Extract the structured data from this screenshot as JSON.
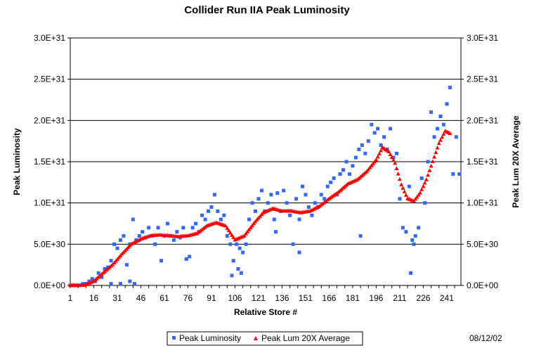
{
  "chart_data": {
    "type": "scatter",
    "title": "Collider Run IIA Peak Luminosity",
    "xlabel": "Relative Store #",
    "ylabel": "Peak Luminosity",
    "y2label": "Peak Lum 20X Average",
    "xlim": [
      1,
      250
    ],
    "ylim": [
      0,
      3e+31
    ],
    "x_ticks": [
      "1",
      "16",
      "31",
      "46",
      "61",
      "76",
      "91",
      "106",
      "121",
      "136",
      "151",
      "166",
      "181",
      "196",
      "211",
      "226",
      "241"
    ],
    "y_ticks": [
      "0.0E+00",
      "5.0E+30",
      "1.0E+31",
      "1.5E+31",
      "2.0E+31",
      "2.5E+31",
      "3.0E+31"
    ],
    "grid": "horizontal",
    "legend_position": "bottom",
    "series": [
      {
        "name": "Peak Luminosity",
        "color": "#3366ff",
        "marker": "square",
        "x": [
          1,
          3,
          5,
          7,
          9,
          11,
          13,
          15,
          17,
          19,
          21,
          23,
          25,
          27,
          29,
          31,
          33,
          35,
          37,
          39,
          41,
          43,
          45,
          47,
          49,
          51,
          53,
          55,
          57,
          59,
          61,
          63,
          65,
          67,
          69,
          71,
          73,
          75,
          77,
          79,
          81,
          83,
          85,
          87,
          89,
          91,
          93,
          95,
          97,
          99,
          101,
          103,
          105,
          107,
          109,
          111,
          113,
          115,
          117,
          119,
          121,
          123,
          125,
          127,
          129,
          131,
          133,
          135,
          137,
          139,
          141,
          143,
          145,
          147,
          149,
          151,
          153,
          155,
          157,
          159,
          161,
          163,
          165,
          167,
          169,
          171,
          173,
          175,
          177,
          179,
          181,
          183,
          185,
          187,
          189,
          191,
          193,
          195,
          197,
          199,
          201,
          203,
          205,
          207,
          209,
          211,
          213,
          215,
          217,
          219,
          221,
          223,
          225,
          227,
          229,
          231,
          233,
          235,
          237,
          239,
          241,
          243,
          245,
          247,
          249,
          27,
          33,
          39,
          42,
          104,
          108,
          110,
          132,
          147,
          186,
          218,
          220
        ],
        "y": [
          0,
          0,
          0,
          0,
          2e+29,
          2e+29,
          5e+29,
          8e+29,
          5e+29,
          1.5e+30,
          1e+30,
          2e+30,
          2.2e+30,
          3e+30,
          5e+30,
          4.5e+30,
          5.5e+30,
          6e+30,
          2.5e+30,
          5e+30,
          8e+30,
          5.5e+30,
          6e+30,
          6.5e+30,
          5.8e+30,
          7e+30,
          6e+30,
          5e+30,
          7e+30,
          3e+30,
          6e+30,
          7.5e+30,
          6e+30,
          5.5e+30,
          6.5e+30,
          5.8e+30,
          7e+30,
          3.2e+30,
          3.5e+30,
          7e+30,
          7.5e+30,
          6.5e+30,
          8.5e+30,
          8e+30,
          9e+30,
          9.5e+30,
          1.1e+31,
          9e+30,
          8e+30,
          8.5e+30,
          6e+30,
          5e+30,
          3e+30,
          5e+30,
          4.5e+30,
          4e+30,
          5e+30,
          8e+30,
          1e+31,
          9e+30,
          1.05e+31,
          1.15e+31,
          9e+30,
          1e+31,
          1.1e+31,
          8e+30,
          1.12e+31,
          9e+30,
          1.15e+31,
          1e+31,
          8.5e+30,
          5e+30,
          1.05e+31,
          8e+30,
          1.2e+31,
          1.1e+31,
          9.5e+30,
          8.5e+30,
          1e+31,
          9.5e+30,
          1.1e+31,
          1.05e+31,
          1.2e+31,
          1.25e+31,
          1.3e+31,
          1.1e+31,
          1.35e+31,
          1.4e+31,
          1.5e+31,
          1.35e+31,
          1.45e+31,
          1.55e+31,
          1.65e+31,
          1.7e+31,
          1.6e+31,
          1.75e+31,
          1.95e+31,
          1.85e+31,
          1.9e+31,
          1.7e+31,
          1.8e+31,
          1.65e+31,
          1.9e+31,
          1.55e+31,
          1.6e+31,
          1.05e+31,
          7e+30,
          6.5e+30,
          1.2e+31,
          5.5e+30,
          6e+30,
          7e+30,
          1.3e+31,
          1e+31,
          1.5e+31,
          2.1e+31,
          1.8e+31,
          1.9e+31,
          2.05e+31,
          1.95e+31,
          2.2e+31,
          2.4e+31,
          1.35e+31,
          1.8e+31,
          1.35e+31,
          2e+29,
          2e+29,
          5e+29,
          2e+29,
          1.2e+30,
          2e+30,
          1.5e+30,
          6.5e+30,
          4e+30,
          6e+30,
          1.5e+30,
          5e+30
        ]
      },
      {
        "name": "Peak Lum 20X Average",
        "color": "#ff0000",
        "marker": "triangle",
        "x": [
          1,
          10,
          16,
          22,
          28,
          34,
          40,
          46,
          52,
          58,
          64,
          70,
          76,
          82,
          88,
          94,
          100,
          106,
          112,
          118,
          124,
          130,
          136,
          142,
          148,
          154,
          160,
          166,
          172,
          178,
          184,
          190,
          196,
          200,
          204,
          208,
          212,
          216,
          220,
          224,
          228,
          232,
          236,
          240,
          243
        ],
        "y": [
          0,
          0,
          5e+29,
          1.5e+30,
          2.5e+30,
          3.8e+30,
          5e+30,
          5.6e+30,
          6e+30,
          6.1e+30,
          6e+30,
          5.9e+30,
          6e+30,
          6.3e+30,
          7.2e+30,
          7.6e+30,
          7.2e+30,
          5.5e+30,
          6e+30,
          7.5e+30,
          8.8e+30,
          9.3e+30,
          9e+30,
          9e+30,
          8.8e+30,
          9e+30,
          9.6e+30,
          1.05e+31,
          1.13e+31,
          1.23e+31,
          1.28e+31,
          1.38e+31,
          1.52e+31,
          1.67e+31,
          1.62e+31,
          1.48e+31,
          1.22e+31,
          1.05e+31,
          1.02e+31,
          1.12e+31,
          1.28e+31,
          1.5e+31,
          1.72e+31,
          1.87e+31,
          1.84e+31
        ]
      }
    ]
  },
  "date": "08/12/02"
}
